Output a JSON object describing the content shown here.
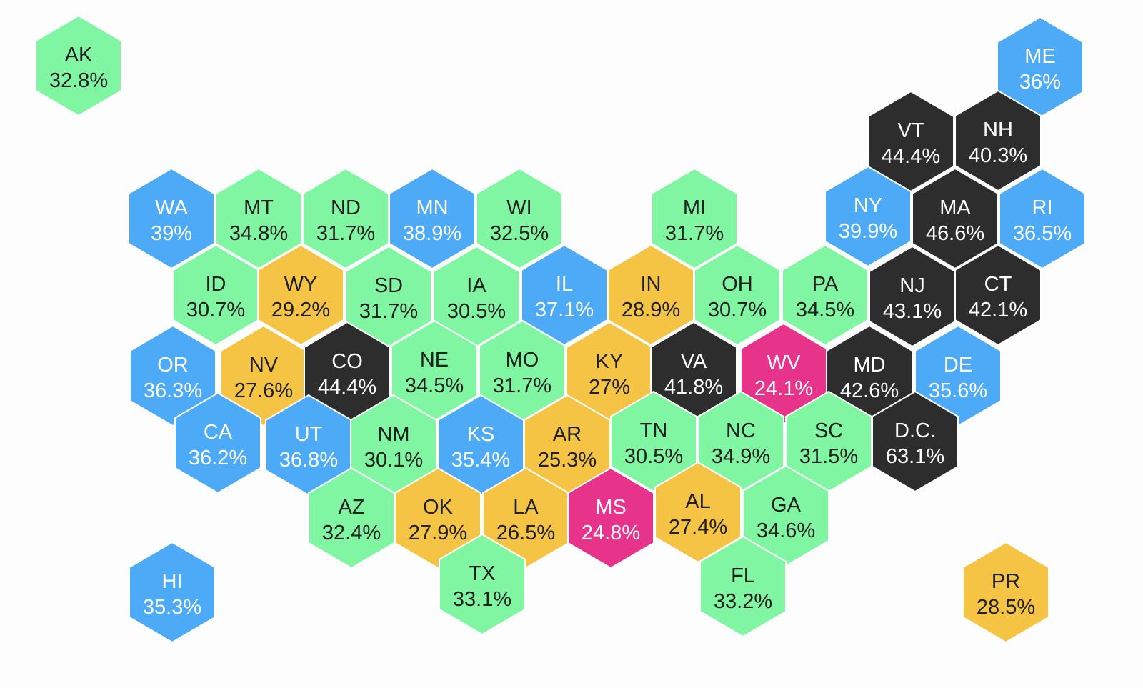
{
  "colors": {
    "green": "#80f5a2",
    "blue": "#4daaf7",
    "yellow": "#f6c445",
    "black": "#2d2d2d",
    "pink": "#e8338a",
    "dark_text": "#1f1f1f",
    "light_text": "#ffffff"
  },
  "states": [
    {
      "abbr": "AK",
      "value": "32.8%",
      "color": "green"
    },
    {
      "abbr": "ME",
      "value": "36%",
      "color": "blue"
    },
    {
      "abbr": "VT",
      "value": "44.4%",
      "color": "black"
    },
    {
      "abbr": "NH",
      "value": "40.3%",
      "color": "black"
    },
    {
      "abbr": "WA",
      "value": "39%",
      "color": "blue"
    },
    {
      "abbr": "MT",
      "value": "34.8%",
      "color": "green"
    },
    {
      "abbr": "ND",
      "value": "31.7%",
      "color": "green"
    },
    {
      "abbr": "MN",
      "value": "38.9%",
      "color": "blue"
    },
    {
      "abbr": "WI",
      "value": "32.5%",
      "color": "green"
    },
    {
      "abbr": "MI",
      "value": "31.7%",
      "color": "green"
    },
    {
      "abbr": "NY",
      "value": "39.9%",
      "color": "blue"
    },
    {
      "abbr": "MA",
      "value": "46.6%",
      "color": "black"
    },
    {
      "abbr": "RI",
      "value": "36.5%",
      "color": "blue"
    },
    {
      "abbr": "ID",
      "value": "30.7%",
      "color": "green"
    },
    {
      "abbr": "WY",
      "value": "29.2%",
      "color": "yellow"
    },
    {
      "abbr": "SD",
      "value": "31.7%",
      "color": "green"
    },
    {
      "abbr": "IA",
      "value": "30.5%",
      "color": "green"
    },
    {
      "abbr": "IL",
      "value": "37.1%",
      "color": "blue"
    },
    {
      "abbr": "IN",
      "value": "28.9%",
      "color": "yellow"
    },
    {
      "abbr": "OH",
      "value": "30.7%",
      "color": "green"
    },
    {
      "abbr": "PA",
      "value": "34.5%",
      "color": "green"
    },
    {
      "abbr": "NJ",
      "value": "43.1%",
      "color": "black"
    },
    {
      "abbr": "CT",
      "value": "42.1%",
      "color": "black"
    },
    {
      "abbr": "OR",
      "value": "36.3%",
      "color": "blue"
    },
    {
      "abbr": "NV",
      "value": "27.6%",
      "color": "yellow"
    },
    {
      "abbr": "CO",
      "value": "44.4%",
      "color": "black"
    },
    {
      "abbr": "NE",
      "value": "34.5%",
      "color": "green"
    },
    {
      "abbr": "MO",
      "value": "31.7%",
      "color": "green"
    },
    {
      "abbr": "KY",
      "value": "27%",
      "color": "yellow"
    },
    {
      "abbr": "VA",
      "value": "41.8%",
      "color": "black"
    },
    {
      "abbr": "WV",
      "value": "24.1%",
      "color": "pink"
    },
    {
      "abbr": "MD",
      "value": "42.6%",
      "color": "black"
    },
    {
      "abbr": "DE",
      "value": "35.6%",
      "color": "blue"
    },
    {
      "abbr": "CA",
      "value": "36.2%",
      "color": "blue"
    },
    {
      "abbr": "UT",
      "value": "36.8%",
      "color": "blue"
    },
    {
      "abbr": "NM",
      "value": "30.1%",
      "color": "green"
    },
    {
      "abbr": "KS",
      "value": "35.4%",
      "color": "blue"
    },
    {
      "abbr": "AR",
      "value": "25.3%",
      "color": "yellow"
    },
    {
      "abbr": "TN",
      "value": "30.5%",
      "color": "green"
    },
    {
      "abbr": "NC",
      "value": "34.9%",
      "color": "green"
    },
    {
      "abbr": "SC",
      "value": "31.5%",
      "color": "green"
    },
    {
      "abbr": "D.C.",
      "value": "63.1%",
      "color": "black"
    },
    {
      "abbr": "AZ",
      "value": "32.4%",
      "color": "green"
    },
    {
      "abbr": "OK",
      "value": "27.9%",
      "color": "yellow"
    },
    {
      "abbr": "LA",
      "value": "26.5%",
      "color": "yellow"
    },
    {
      "abbr": "MS",
      "value": "24.8%",
      "color": "pink"
    },
    {
      "abbr": "AL",
      "value": "27.4%",
      "color": "yellow"
    },
    {
      "abbr": "GA",
      "value": "34.6%",
      "color": "green"
    },
    {
      "abbr": "HI",
      "value": "35.3%",
      "color": "blue"
    },
    {
      "abbr": "TX",
      "value": "33.1%",
      "color": "green"
    },
    {
      "abbr": "FL",
      "value": "33.2%",
      "color": "green"
    },
    {
      "abbr": "PR",
      "value": "28.5%",
      "color": "yellow"
    }
  ]
}
